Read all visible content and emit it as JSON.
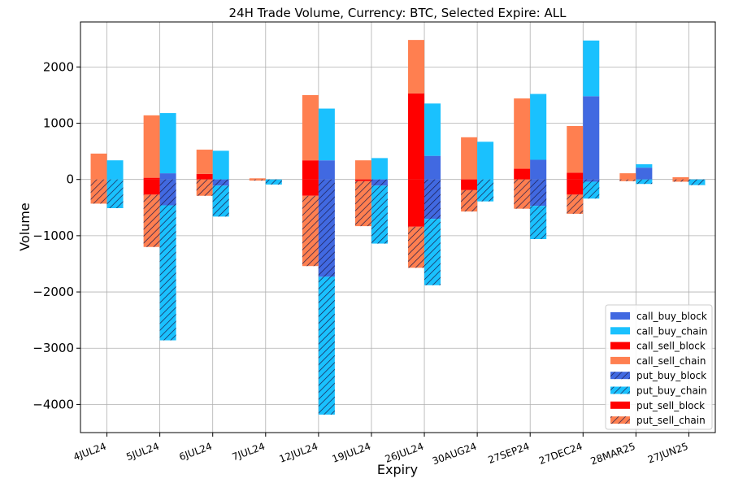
{
  "chart_data": {
    "type": "bar",
    "title": "24H Trade Volume, Currency: BTC, Selected Expire: ALL",
    "xlabel": "Expiry",
    "ylabel": "Volume",
    "ylim": [
      -4500,
      2800
    ],
    "yticks": [
      2000,
      1000,
      0,
      -1000,
      -2000,
      -3000,
      -4000
    ],
    "ytick_labels": [
      "2000",
      "1000",
      "0",
      "−1000",
      "−2000",
      "−3000",
      "−4000"
    ],
    "grid": true,
    "legend_position": "lower-right",
    "categories": [
      "4JUL24",
      "5JUL24",
      "6JUL24",
      "7JUL24",
      "12JUL24",
      "19JUL24",
      "26JUL24",
      "30AUG24",
      "27SEP24",
      "27DEC24",
      "28MAR25",
      "27JUN25"
    ],
    "series": [
      {
        "name": "call_buy_block",
        "color": "#4169e1",
        "hatch": false,
        "side": "buy",
        "values": [
          0,
          110,
          0,
          0,
          340,
          0,
          420,
          0,
          350,
          1480,
          210,
          0
        ]
      },
      {
        "name": "call_buy_chain",
        "color": "#1ac1fe",
        "hatch": false,
        "side": "buy",
        "values": [
          340,
          1070,
          510,
          0,
          920,
          380,
          930,
          670,
          1170,
          990,
          60,
          0
        ]
      },
      {
        "name": "call_sell_block",
        "color": "#ff0000",
        "hatch": false,
        "side": "sell",
        "values": [
          0,
          30,
          100,
          0,
          340,
          0,
          1530,
          0,
          190,
          120,
          0,
          0
        ]
      },
      {
        "name": "call_sell_chain",
        "color": "#ff7f50",
        "hatch": false,
        "side": "sell",
        "values": [
          460,
          1110,
          430,
          20,
          1160,
          340,
          950,
          750,
          1250,
          830,
          110,
          40
        ]
      },
      {
        "name": "put_buy_block",
        "color": "#4169e1",
        "hatch": true,
        "side": "buy",
        "values": [
          0,
          -460,
          -110,
          0,
          -1730,
          -110,
          -700,
          0,
          -470,
          -40,
          0,
          0
        ]
      },
      {
        "name": "put_buy_chain",
        "color": "#1ac1fe",
        "hatch": true,
        "side": "buy",
        "values": [
          -510,
          -2400,
          -550,
          -90,
          -2450,
          -1030,
          -1180,
          -390,
          -590,
          -300,
          -80,
          -100
        ]
      },
      {
        "name": "put_sell_block",
        "color": "#ff0000",
        "hatch": false,
        "side": "sell",
        "values": [
          0,
          -270,
          0,
          0,
          -290,
          -30,
          -840,
          -190,
          0,
          -270,
          0,
          0
        ]
      },
      {
        "name": "put_sell_chain",
        "color": "#ff7f50",
        "hatch": true,
        "side": "sell",
        "values": [
          -430,
          -930,
          -290,
          -20,
          -1250,
          -800,
          -730,
          -380,
          -520,
          -340,
          -30,
          -40
        ]
      }
    ]
  }
}
